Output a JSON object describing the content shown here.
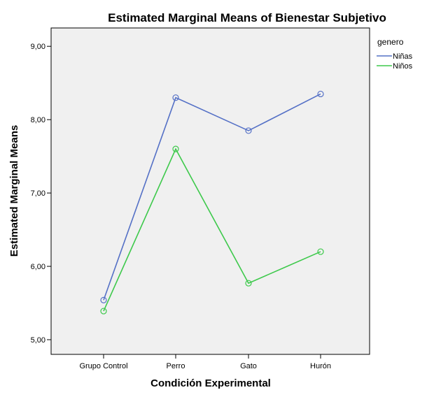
{
  "chart_data": {
    "type": "line",
    "title": "Estimated Marginal Means of Bienestar Subjetivo",
    "xlabel": "Condición Experimental",
    "ylabel": "Estimated Marginal Means",
    "categories": [
      "Grupo Control",
      "Perro",
      "Gato",
      "Hurón"
    ],
    "ylim": [
      4.8,
      9.25
    ],
    "yticks": [
      "5,00",
      "6,00",
      "7,00",
      "8,00",
      "9,00"
    ],
    "ytick_values": [
      5,
      6,
      7,
      8,
      9
    ],
    "legend": {
      "title": "genero",
      "placement": "right"
    },
    "series": [
      {
        "name": "Niñas",
        "color": "#5470c6",
        "values": [
          5.54,
          8.3,
          7.85,
          8.35
        ]
      },
      {
        "name": "Niños",
        "color": "#3dc94b",
        "values": [
          5.39,
          7.6,
          5.77,
          6.2
        ]
      }
    ],
    "plot_background": "#f0f0f0"
  }
}
